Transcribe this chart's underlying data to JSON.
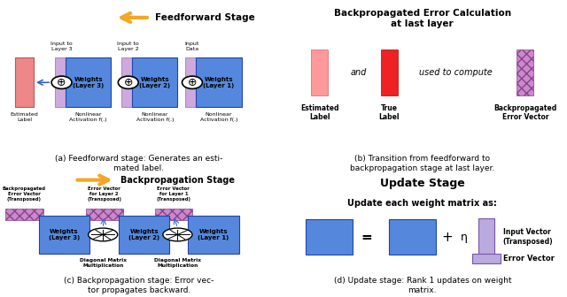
{
  "bg_color": "#ffffff",
  "panel_a": {
    "title": "Feedforward Stage",
    "caption": "(a) Feedforward stage: Generates an esti-\nmated label.",
    "arrow_color": "#F5A623",
    "weights_color": "#5588DD",
    "input_color": "#CCAADD",
    "estimated_color": "#EE8888",
    "layer_labels": [
      "Weights\n(Layer 3)",
      "Weights\n(Layer 2)",
      "Weights\n(Layer 1)"
    ],
    "top_labels": [
      "Input to\nLayer 3",
      "Input to\nLayer 2",
      "Input\nData"
    ],
    "bottom_labels": [
      "Nonlinear\nActivation f(.)",
      "Nonlinear\nActivation f(.)",
      "Nonlinear\nActivation f(.)"
    ],
    "est_label": "Estimated\nLabel"
  },
  "panel_b": {
    "title": "Backpropagated Error Calculation\nat last layer",
    "caption": "(b) Transition from feedforward to\nbackpropagation stage at last layer.",
    "est_color": "#FF9999",
    "true_color": "#EE2222",
    "bp_color": "#CC88CC",
    "est_label": "Estimated\nLabel",
    "true_label": "True\nLabel",
    "bp_label": "Backpropagated\nError Vector"
  },
  "panel_c": {
    "title": "Backpropagation Stage",
    "caption": "(c) Backpropagation stage: Error vec-\ntor propagates backward.",
    "arrow_color": "#F5A623",
    "weights_color": "#5588DD",
    "bp_color": "#CC88CC",
    "layer_labels": [
      "Weights\n(Layer 3)",
      "Weights\n(Layer 2)",
      "Weights\n(Layer 1)"
    ],
    "top_labels": [
      "Backpropagated\nError Vector\n(Transposed)",
      "Error Vector\nfor Layer 2\n(Transposed)",
      "Error Vector\nfor Layer 1\n(Transposed)"
    ],
    "bottom_labels": [
      "Diagonal Matrix\nMultiplication",
      "Diagonal Matrix\nMultiplication"
    ]
  },
  "panel_d": {
    "title": "Update Stage",
    "subtitle": "Update each weight matrix as:",
    "caption": "(d) Update stage: Rank 1 updates on weight\nmatrix.",
    "weights_color": "#5588DD",
    "input_color": "#BBAADD",
    "iv_label": "Input Vector\n(Transposed)",
    "ev_label": "Error Vector"
  }
}
